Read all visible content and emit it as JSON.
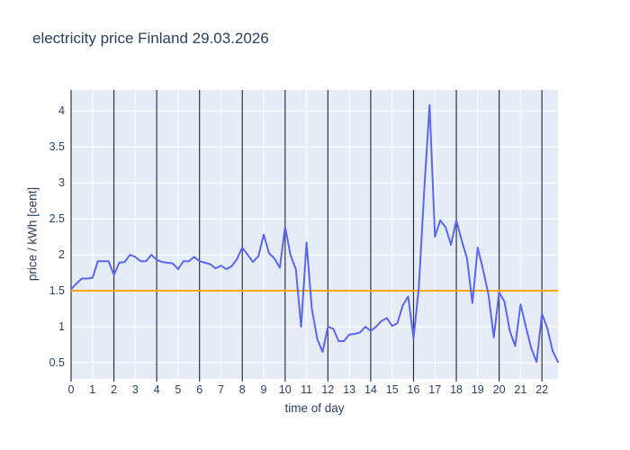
{
  "page": {
    "background": "#ffffff"
  },
  "chart_data": {
    "type": "line",
    "title": "electricity price Finland 29.03.2026",
    "xlabel": "time of day",
    "ylabel": "price / kWh [cent]",
    "x": [
      0,
      0.25,
      0.5,
      0.75,
      1,
      1.25,
      1.5,
      1.75,
      2,
      2.25,
      2.5,
      2.75,
      3,
      3.25,
      3.5,
      3.75,
      4,
      4.25,
      4.5,
      4.75,
      5,
      5.25,
      5.5,
      5.75,
      6,
      6.25,
      6.5,
      6.75,
      7,
      7.25,
      7.5,
      7.75,
      8,
      8.25,
      8.5,
      8.75,
      9,
      9.25,
      9.5,
      9.75,
      10,
      10.25,
      10.5,
      10.75,
      11,
      11.25,
      11.5,
      11.75,
      12,
      12.25,
      12.5,
      12.75,
      13,
      13.25,
      13.5,
      13.75,
      14,
      14.25,
      14.5,
      14.75,
      15,
      15.25,
      15.5,
      15.75,
      16,
      16.25,
      16.5,
      16.75,
      17,
      17.25,
      17.5,
      17.75,
      18,
      18.25,
      18.5,
      18.75,
      19,
      19.25,
      19.5,
      19.75,
      20,
      20.25,
      20.5,
      20.75,
      21,
      21.25,
      21.5,
      21.75,
      22,
      22.25,
      22.5,
      22.75
    ],
    "series": [
      {
        "name": "electricity price",
        "color": "#5c67f0",
        "values": [
          1.52,
          1.6,
          1.67,
          1.67,
          1.68,
          1.91,
          1.91,
          1.91,
          1.72,
          1.89,
          1.9,
          2.0,
          1.97,
          1.91,
          1.91,
          2.0,
          1.93,
          1.9,
          1.89,
          1.88,
          1.8,
          1.91,
          1.91,
          1.97,
          1.91,
          1.89,
          1.87,
          1.81,
          1.85,
          1.8,
          1.84,
          1.94,
          2.1,
          2.0,
          1.9,
          1.98,
          2.28,
          2.02,
          1.95,
          1.82,
          2.39,
          2.0,
          1.8,
          1.0,
          2.17,
          1.25,
          0.83,
          0.65,
          1.0,
          0.97,
          0.8,
          0.8,
          0.89,
          0.9,
          0.92,
          1.0,
          0.94,
          1.0,
          1.08,
          1.12,
          1.01,
          1.05,
          1.3,
          1.42,
          0.84,
          1.55,
          2.9,
          4.08,
          2.25,
          2.48,
          2.38,
          2.14,
          2.48,
          2.2,
          1.95,
          1.33,
          2.1,
          1.79,
          1.45,
          0.85,
          1.48,
          1.35,
          0.94,
          0.73,
          1.31,
          1.0,
          0.7,
          0.51,
          1.18,
          0.98,
          0.66,
          0.51
        ]
      }
    ],
    "reference_line": {
      "y": 1.5,
      "color": "#ffa500"
    },
    "hour_marker_lines": [
      0,
      2,
      4,
      6,
      8,
      10,
      12,
      14,
      16,
      18,
      20,
      22
    ],
    "xticks": [
      0,
      1,
      2,
      3,
      4,
      5,
      6,
      7,
      8,
      9,
      10,
      11,
      12,
      13,
      14,
      15,
      16,
      17,
      18,
      19,
      20,
      21,
      22
    ],
    "yticks": [
      0.5,
      1,
      1.5,
      2,
      2.5,
      3,
      3.5,
      4
    ],
    "xlim": [
      0,
      22.75
    ],
    "ylim": [
      0.275,
      4.29
    ],
    "grid": true,
    "legend": false,
    "plot_background": "#e5ecf6",
    "grid_color": "#ffffff",
    "marker_line_color": "#333333",
    "text_color": "#2a3f5f"
  }
}
